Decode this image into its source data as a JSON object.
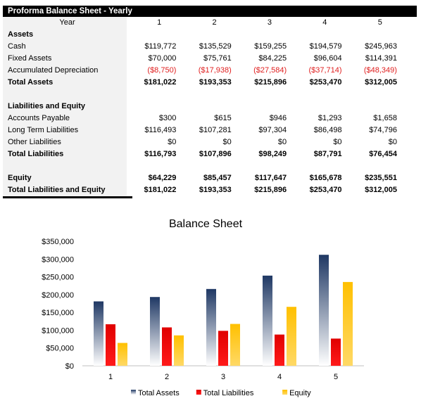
{
  "sheet": {
    "title": "Proforma Balance Sheet - Yearly",
    "header_label": "Year",
    "years": [
      "1",
      "2",
      "3",
      "4",
      "5"
    ],
    "rows": [
      {
        "label": "Assets",
        "bold": true,
        "values": [
          "",
          "",
          "",
          "",
          ""
        ]
      },
      {
        "label": "Cash",
        "values": [
          "$119,772",
          "$135,529",
          "$159,255",
          "$194,579",
          "$245,963"
        ]
      },
      {
        "label": "Fixed Assets",
        "values": [
          "$70,000",
          "$75,761",
          "$84,225",
          "$96,604",
          "$114,391"
        ]
      },
      {
        "label": "Accumulated Depreciation",
        "negative": true,
        "values": [
          "($8,750)",
          "($17,938)",
          "($27,584)",
          "($37,714)",
          "($48,349)"
        ]
      },
      {
        "label": "Total Assets",
        "bold": true,
        "values": [
          "$181,022",
          "$193,353",
          "$215,896",
          "$253,470",
          "$312,005"
        ]
      },
      {
        "label": "",
        "values": [
          "",
          "",
          "",
          "",
          ""
        ]
      },
      {
        "label": "Liabilities and Equity",
        "bold": true,
        "values": [
          "",
          "",
          "",
          "",
          ""
        ]
      },
      {
        "label": "Accounts Payable",
        "values": [
          "$300",
          "$615",
          "$946",
          "$1,293",
          "$1,658"
        ]
      },
      {
        "label": "Long Term Liabilities",
        "values": [
          "$116,493",
          "$107,281",
          "$97,304",
          "$86,498",
          "$74,796"
        ]
      },
      {
        "label": "Other Liabilities",
        "values": [
          "$0",
          "$0",
          "$0",
          "$0",
          "$0"
        ]
      },
      {
        "label": "Total Liabilities",
        "bold": true,
        "values": [
          "$116,793",
          "$107,896",
          "$98,249",
          "$87,791",
          "$76,454"
        ]
      },
      {
        "label": "",
        "values": [
          "",
          "",
          "",
          "",
          ""
        ]
      },
      {
        "label": "Equity",
        "bold": true,
        "values": [
          "$64,229",
          "$85,457",
          "$117,647",
          "$165,678",
          "$235,551"
        ]
      },
      {
        "label": "Total Liabilities and Equity",
        "bold": true,
        "values": [
          "$181,022",
          "$193,353",
          "$215,896",
          "$253,470",
          "$312,005"
        ]
      }
    ]
  },
  "chart_data": {
    "type": "bar",
    "title": "Balance Sheet",
    "categories": [
      "1",
      "2",
      "3",
      "4",
      "5"
    ],
    "series": [
      {
        "name": "Total Assets",
        "values": [
          181022,
          193353,
          215896,
          253470,
          312005
        ],
        "color": "#1f3864"
      },
      {
        "name": "Total Liabilities",
        "values": [
          116793,
          107896,
          98249,
          87791,
          76454
        ],
        "color": "#e00000"
      },
      {
        "name": "Equity",
        "values": [
          64229,
          85457,
          117647,
          165678,
          235551
        ],
        "color": "#ffc000"
      }
    ],
    "ylim": [
      0,
      350000
    ],
    "yticks": [
      "$0",
      "$50,000",
      "$100,000",
      "$150,000",
      "$200,000",
      "$250,000",
      "$300,000",
      "$350,000"
    ],
    "legend_position": "bottom",
    "grid": false
  }
}
